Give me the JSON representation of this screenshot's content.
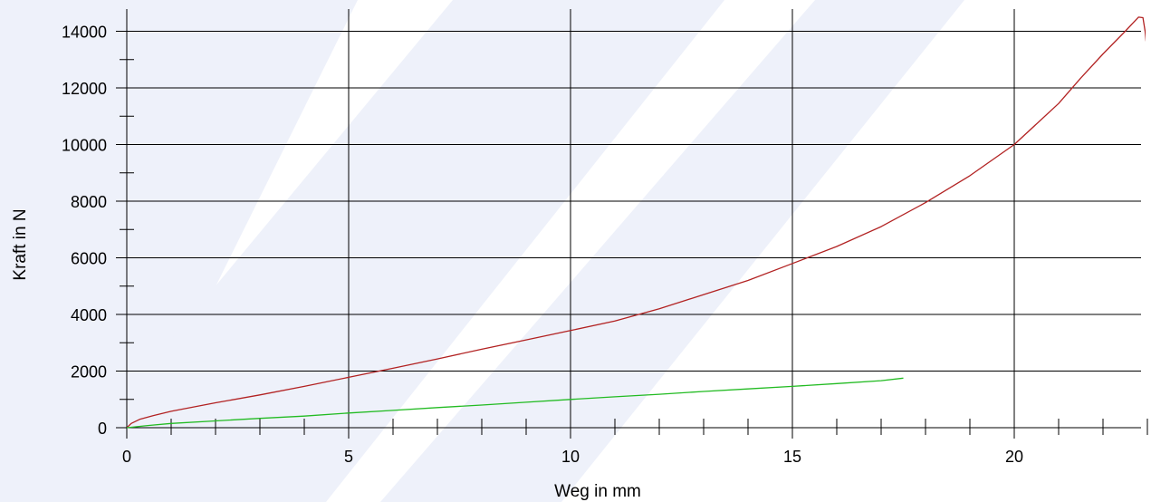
{
  "chart_data": {
    "type": "line",
    "xlabel": "Weg in mm",
    "ylabel": "Kraft in N",
    "xlim": [
      0,
      23
    ],
    "ylim": [
      0,
      14500
    ],
    "x_ticks": [
      0,
      5,
      10,
      15,
      20
    ],
    "y_ticks": [
      0,
      2000,
      4000,
      6000,
      8000,
      10000,
      12000,
      14000
    ],
    "x_minor_step": 1,
    "y_minor_step": 1000,
    "grid": true,
    "series": [
      {
        "color": "#b22222",
        "x": [
          0,
          0.1,
          0.3,
          0.6,
          1,
          2,
          3,
          4,
          5,
          6,
          7,
          8,
          9,
          10,
          11,
          12,
          13,
          14,
          15,
          16,
          17,
          18,
          19,
          20,
          21,
          21.5,
          22,
          22.5,
          22.8,
          22.9,
          22.95,
          22.97
        ],
        "y": [
          0,
          150,
          300,
          430,
          580,
          880,
          1160,
          1460,
          1780,
          2100,
          2430,
          2770,
          3100,
          3430,
          3770,
          4200,
          4700,
          5200,
          5800,
          6400,
          7100,
          7950,
          8900,
          10000,
          11450,
          12350,
          13200,
          14000,
          14500,
          14480,
          14000,
          13650
        ]
      },
      {
        "color": "#22bb22",
        "x": [
          0,
          0.5,
          1,
          2,
          3,
          4,
          5,
          6,
          7,
          8,
          9,
          10,
          11,
          12,
          13,
          14,
          15,
          16,
          17,
          17.5
        ],
        "y": [
          0,
          80,
          150,
          240,
          330,
          410,
          520,
          610,
          710,
          800,
          900,
          1000,
          1090,
          1180,
          1280,
          1370,
          1460,
          1560,
          1660,
          1750
        ]
      }
    ]
  }
}
